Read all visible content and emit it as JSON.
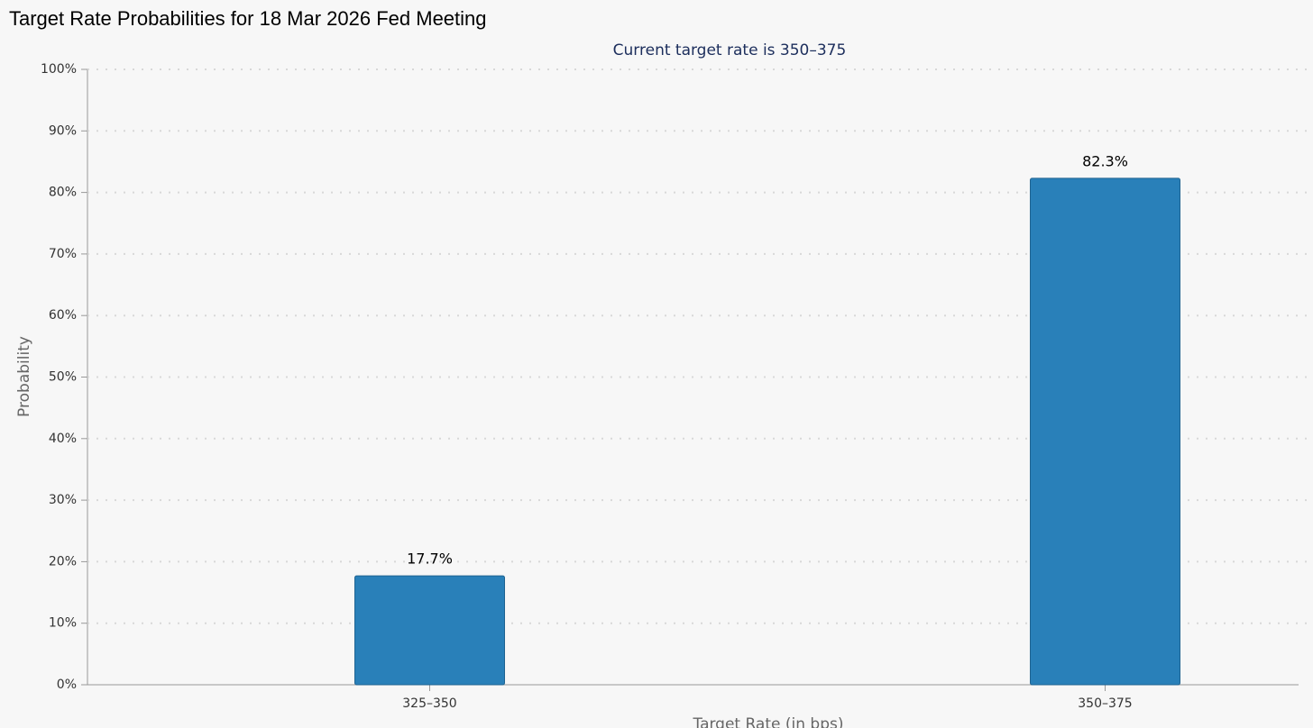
{
  "chart_data": {
    "type": "bar",
    "title": "Target Rate Probabilities for 18 Mar 2026 Fed Meeting",
    "subtitle": "Current target rate is 350–375",
    "x_label": "Target Rate (in bps)",
    "y_label": "Probability",
    "categories": [
      "325–350",
      "350–375"
    ],
    "values": [
      17.7,
      82.3
    ],
    "value_labels": [
      "17.7%",
      "82.3%"
    ],
    "color": "#2980b9",
    "ylim": [
      0,
      100
    ],
    "yticks": [
      {
        "value": 0,
        "label": "0%"
      },
      {
        "value": 10,
        "label": "10%"
      },
      {
        "value": 20,
        "label": "20%"
      },
      {
        "value": 30,
        "label": "30%"
      },
      {
        "value": 40,
        "label": "40%"
      },
      {
        "value": 50,
        "label": "50%"
      },
      {
        "value": 60,
        "label": "60%"
      },
      {
        "value": 70,
        "label": "70%"
      },
      {
        "value": 80,
        "label": "80%"
      },
      {
        "value": 90,
        "label": "90%"
      },
      {
        "value": 100,
        "label": "100%"
      }
    ],
    "grid": true
  }
}
